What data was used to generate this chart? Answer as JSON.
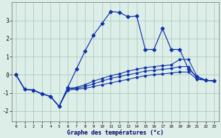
{
  "background_color": "#ddeee8",
  "grid_color": "#aaccbb",
  "line_color": "#1133aa",
  "title": "Graphe des températures (°c)",
  "xlim": [
    -0.5,
    23.5
  ],
  "ylim": [
    -2.6,
    4.0
  ],
  "yticks": [
    -2,
    -1,
    0,
    1,
    2,
    3
  ],
  "xticks": [
    0,
    1,
    2,
    3,
    4,
    5,
    6,
    7,
    8,
    9,
    10,
    11,
    12,
    13,
    14,
    15,
    16,
    17,
    18,
    19,
    20,
    21,
    22,
    23
  ],
  "figwidth": 3.2,
  "figheight": 2.0,
  "dpi": 100,
  "lines": [
    {
      "x": [
        0,
        1,
        2,
        3,
        4,
        5,
        6,
        7,
        8,
        9,
        10,
        11,
        12,
        13,
        14,
        15,
        16,
        17,
        18,
        19,
        20,
        21,
        22,
        23
      ],
      "y": [
        0,
        -0.8,
        -0.85,
        -1.05,
        -1.2,
        -1.75,
        -0.85,
        -0.8,
        -0.75,
        -0.65,
        -0.55,
        -0.45,
        -0.35,
        -0.25,
        -0.15,
        -0.05,
        0.0,
        0.05,
        0.1,
        0.15,
        0.15,
        -0.25,
        -0.3,
        -0.35
      ],
      "has_markers": false
    },
    {
      "x": [
        0,
        1,
        2,
        3,
        4,
        5,
        6,
        7,
        8,
        9,
        10,
        11,
        12,
        13,
        14,
        15,
        16,
        17,
        18,
        19,
        20,
        21,
        22,
        23
      ],
      "y": [
        0,
        -0.8,
        -0.85,
        -1.05,
        -1.2,
        -1.75,
        -0.8,
        -0.75,
        -0.65,
        -0.5,
        -0.35,
        -0.2,
        -0.1,
        -0.0,
        0.1,
        0.2,
        0.25,
        0.3,
        0.35,
        0.45,
        0.45,
        -0.2,
        -0.3,
        -0.35
      ],
      "has_markers": false
    },
    {
      "x": [
        0,
        1,
        2,
        3,
        4,
        5,
        6,
        7,
        8,
        9,
        10,
        11,
        12,
        13,
        14,
        15,
        16,
        17,
        18,
        19,
        20,
        21,
        22,
        23
      ],
      "y": [
        0,
        -0.8,
        -0.85,
        -1.05,
        -1.2,
        -1.75,
        -0.75,
        -0.7,
        -0.55,
        -0.35,
        -0.2,
        -0.05,
        0.05,
        0.2,
        0.3,
        0.4,
        0.45,
        0.5,
        0.55,
        0.85,
        0.85,
        -0.1,
        -0.3,
        -0.35
      ],
      "has_markers": false
    },
    {
      "x": [
        0,
        1,
        2,
        3,
        4,
        5,
        6,
        7,
        8,
        9,
        10,
        11,
        12,
        13,
        14,
        15,
        16,
        17,
        18,
        19,
        20,
        21,
        22,
        23
      ],
      "y": [
        0,
        -0.8,
        -0.85,
        -1.05,
        -1.2,
        -1.75,
        -0.7,
        0.3,
        1.3,
        2.2,
        2.85,
        3.5,
        3.45,
        3.2,
        3.25,
        1.4,
        1.4,
        2.55,
        1.4,
        1.4,
        0.3,
        -0.1,
        -0.3,
        -0.35
      ],
      "has_markers": true
    }
  ]
}
